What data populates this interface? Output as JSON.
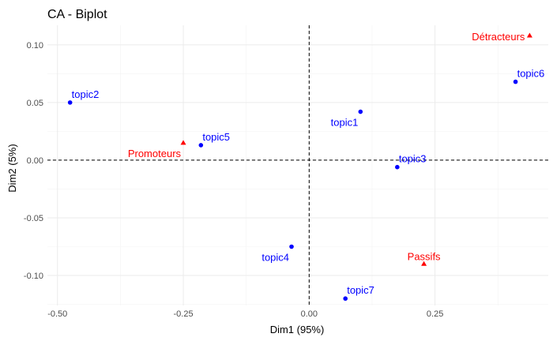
{
  "chart_data": {
    "type": "scatter",
    "title": "CA - Biplot",
    "xlabel": "Dim1 (95%)",
    "ylabel": "Dim2 (5%)",
    "xlim": [
      -0.52,
      0.475
    ],
    "ylim": [
      -0.126,
      0.117
    ],
    "x_ticks": [
      -0.5,
      -0.25,
      0.0,
      0.25
    ],
    "x_tick_labels": [
      "-0.50",
      "-0.25",
      "0.00",
      "0.25"
    ],
    "y_ticks": [
      -0.1,
      -0.05,
      0.0,
      0.05,
      0.1
    ],
    "y_tick_labels": [
      "-0.10",
      "-0.05",
      "0.00",
      "0.05",
      "0.10"
    ],
    "grid": true,
    "reference_lines": {
      "x": 0,
      "y": 0,
      "style": "dashed"
    },
    "series": [
      {
        "color": "#0000ff",
        "marker": "circle",
        "points": [
          {
            "label": "topic1",
            "x": 0.102,
            "y": 0.042,
            "label_pos": "below-left"
          },
          {
            "label": "topic2",
            "x": -0.475,
            "y": 0.05,
            "label_pos": "above-right"
          },
          {
            "label": "topic3",
            "x": 0.175,
            "y": -0.006,
            "label_pos": "above-right"
          },
          {
            "label": "topic4",
            "x": -0.035,
            "y": -0.075,
            "label_pos": "below-left"
          },
          {
            "label": "topic5",
            "x": -0.215,
            "y": 0.013,
            "label_pos": "above-right"
          },
          {
            "label": "topic6",
            "x": 0.41,
            "y": 0.068,
            "label_pos": "above-right"
          },
          {
            "label": "topic7",
            "x": 0.072,
            "y": -0.12,
            "label_pos": "above-right"
          }
        ]
      },
      {
        "color": "#ff0000",
        "marker": "triangle",
        "points": [
          {
            "label": "Promoteurs",
            "x": -0.25,
            "y": 0.015,
            "label_pos": "below-left"
          },
          {
            "label": "Détracteurs",
            "x": 0.438,
            "y": 0.108,
            "label_pos": "left"
          },
          {
            "label": "Passifs",
            "x": 0.228,
            "y": -0.09,
            "label_pos": "above"
          }
        ]
      }
    ]
  }
}
